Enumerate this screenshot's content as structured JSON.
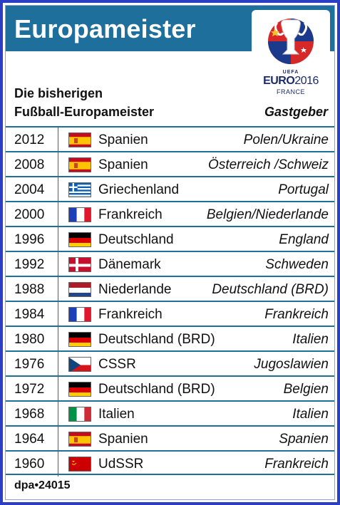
{
  "title": "Europameister",
  "subtitle_line1": "Die bisherigen",
  "subtitle_line2": "Fußball-Europameister",
  "host_header": "Gastgeber",
  "logo": {
    "uefa": "UEFA",
    "euro": "EURO",
    "year": "2016",
    "country": "FRANCE",
    "icon": "euro2016-trophy-logo"
  },
  "rows": [
    {
      "year": "2012",
      "flag": "spain-flag-icon",
      "country": "Spanien",
      "host": "Polen/Ukraine"
    },
    {
      "year": "2008",
      "flag": "spain-flag-icon",
      "country": "Spanien",
      "host": "Österreich /Schweiz"
    },
    {
      "year": "2004",
      "flag": "greece-flag-icon",
      "country": "Griechenland",
      "host": "Portugal"
    },
    {
      "year": "2000",
      "flag": "france-flag-icon",
      "country": "Frankreich",
      "host": "Belgien/Niederlande"
    },
    {
      "year": "1996",
      "flag": "germany-flag-icon",
      "country": "Deutschland",
      "host": "England"
    },
    {
      "year": "1992",
      "flag": "denmark-flag-icon",
      "country": "Dänemark",
      "host": "Schweden"
    },
    {
      "year": "1988",
      "flag": "netherlands-flag-icon",
      "country": "Niederlande",
      "host": "Deutschland (BRD)"
    },
    {
      "year": "1984",
      "flag": "france-flag-icon",
      "country": "Frankreich",
      "host": "Frankreich"
    },
    {
      "year": "1980",
      "flag": "germany-flag-icon",
      "country": "Deutschland (BRD)",
      "host": "Italien"
    },
    {
      "year": "1976",
      "flag": "czechoslovakia-flag-icon",
      "country": "CSSR",
      "host": "Jugoslawien"
    },
    {
      "year": "1972",
      "flag": "germany-flag-icon",
      "country": "Deutschland (BRD)",
      "host": "Belgien"
    },
    {
      "year": "1968",
      "flag": "italy-flag-icon",
      "country": "Italien",
      "host": "Italien"
    },
    {
      "year": "1964",
      "flag": "spain-flag-icon",
      "country": "Spanien",
      "host": "Spanien"
    },
    {
      "year": "1960",
      "flag": "ussr-flag-icon",
      "country": "UdSSR",
      "host": "Frankreich"
    }
  ],
  "footer": "dpa•24015",
  "colors": {
    "band": "#1f6f9c",
    "frame": "#2b3fc4"
  }
}
